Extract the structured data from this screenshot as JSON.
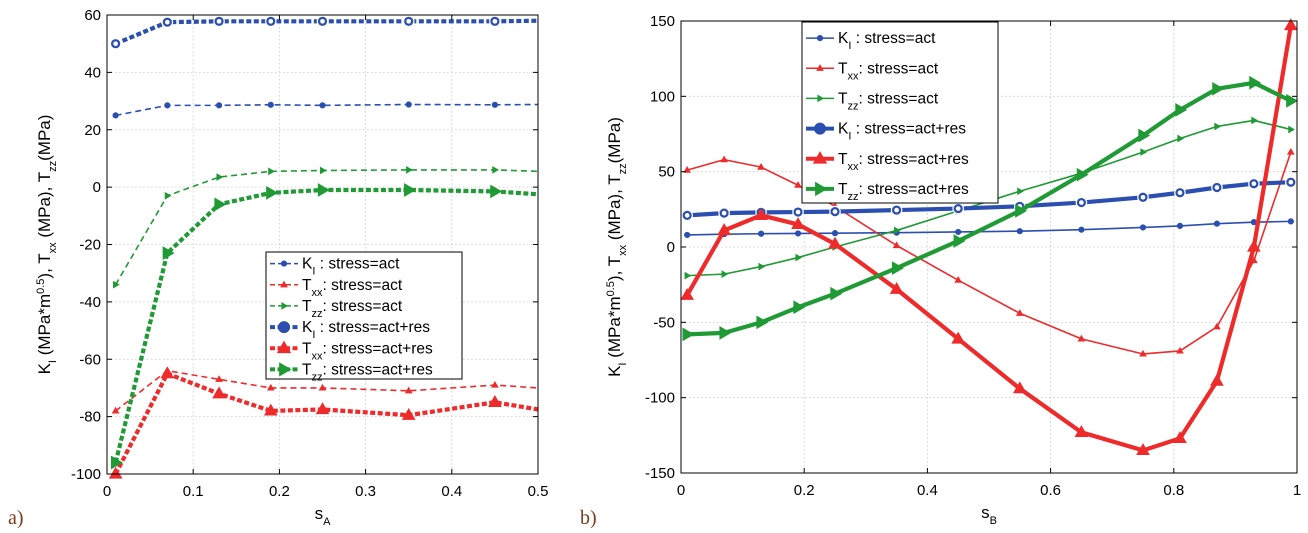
{
  "chart_data": [
    {
      "type": "line",
      "panel_label": "a)",
      "xlabel": {
        "main": "s",
        "sub": "A"
      },
      "ylabel": [
        {
          "t": "K",
          "s": ""
        },
        {
          "t": "I",
          "s": "sub"
        },
        {
          "t": " (MPa*m",
          "s": ""
        },
        {
          "t": "0.5",
          "s": "sup"
        },
        {
          "t": "), T",
          "s": ""
        },
        {
          "t": "xx",
          "s": "sub"
        },
        {
          "t": " (MPa), T",
          "s": ""
        },
        {
          "t": "zz",
          "s": "sub"
        },
        {
          "t": "(MPa)",
          "s": ""
        }
      ],
      "xlim": [
        0,
        0.5
      ],
      "ylim": [
        -100,
        60
      ],
      "xticks": [
        0,
        0.1,
        0.2,
        0.3,
        0.4,
        0.5
      ],
      "xtick_labels": [
        "0",
        "0.1",
        "0.2",
        "0.3",
        "0.4",
        "0.5"
      ],
      "yticks": [
        -100,
        -80,
        -60,
        -40,
        -20,
        0,
        20,
        40,
        60
      ],
      "ytick_labels": [
        "-100",
        "-80",
        "-60",
        "-40",
        "-20",
        "0",
        "20",
        "40",
        "60"
      ],
      "grid": true,
      "legend_position": "center-right",
      "series": [
        {
          "sym": "K",
          "sub": "I",
          "text": "  : stress=act",
          "color": "#2b4fb0",
          "style": "dashed",
          "thick": false,
          "marker": "circle",
          "x": [
            0.01,
            0.07,
            0.13,
            0.19,
            0.25,
            0.35,
            0.45,
            0.5
          ],
          "y": [
            25,
            28.5,
            28.5,
            28.7,
            28.5,
            28.8,
            28.7,
            28.8
          ]
        },
        {
          "sym": "T",
          "sub": "xx",
          "text": ": stress=act",
          "color": "#ee2a2a",
          "style": "dashed",
          "thick": false,
          "marker": "triangle-up",
          "x": [
            0.01,
            0.07,
            0.13,
            0.19,
            0.25,
            0.35,
            0.45,
            0.5
          ],
          "y": [
            -78,
            -64,
            -67,
            -70,
            -70,
            -71,
            -69,
            -70
          ]
        },
        {
          "sym": "T",
          "sub": "zz",
          "text": ": stress=act",
          "color": "#1f9a34",
          "style": "dashed",
          "thick": false,
          "marker": "triangle-right",
          "x": [
            0.01,
            0.07,
            0.13,
            0.19,
            0.25,
            0.35,
            0.45,
            0.5
          ],
          "y": [
            -34,
            -3,
            3.5,
            5.5,
            5.8,
            6,
            6,
            5.5
          ]
        },
        {
          "sym": "K",
          "sub": "I",
          "text": "  : stress=act+res",
          "color": "#2b4fb0",
          "style": "dashed",
          "thick": true,
          "marker": "circle",
          "x": [
            0.01,
            0.07,
            0.13,
            0.19,
            0.25,
            0.35,
            0.45,
            0.5
          ],
          "y": [
            50,
            57.5,
            57.8,
            57.8,
            57.8,
            57.8,
            57.8,
            58
          ]
        },
        {
          "sym": "T",
          "sub": "xx",
          "text": ": stress=act+res",
          "color": "#ee2a2a",
          "style": "dashed",
          "thick": true,
          "marker": "triangle-up",
          "x": [
            0.01,
            0.07,
            0.13,
            0.19,
            0.25,
            0.35,
            0.45,
            0.5
          ],
          "y": [
            -100,
            -65,
            -72,
            -78,
            -77.5,
            -79.5,
            -75,
            -77.5
          ]
        },
        {
          "sym": "T",
          "sub": "zz",
          "text": ": stress=act+res",
          "color": "#1f9a34",
          "style": "dashed",
          "thick": true,
          "marker": "triangle-right",
          "x": [
            0.01,
            0.07,
            0.13,
            0.19,
            0.25,
            0.35,
            0.45,
            0.5
          ],
          "y": [
            -96,
            -23,
            -6,
            -2,
            -1,
            -1,
            -1.5,
            -2.5
          ]
        }
      ]
    },
    {
      "type": "line",
      "panel_label": "b)",
      "xlabel": {
        "main": "s",
        "sub": "B"
      },
      "ylabel": [
        {
          "t": "K",
          "s": ""
        },
        {
          "t": "I",
          "s": "sub"
        },
        {
          "t": " (MPa*m",
          "s": ""
        },
        {
          "t": "0.5",
          "s": "sup"
        },
        {
          "t": "), T",
          "s": ""
        },
        {
          "t": "xx",
          "s": "sub"
        },
        {
          "t": " (MPa), T",
          "s": ""
        },
        {
          "t": "zz",
          "s": "sub"
        },
        {
          "t": "(MPa)",
          "s": ""
        }
      ],
      "xlim": [
        0,
        1
      ],
      "ylim": [
        -150,
        150
      ],
      "xticks": [
        0,
        0.2,
        0.4,
        0.6,
        0.8,
        1
      ],
      "xtick_labels": [
        "0",
        "0.2",
        "0.4",
        "0.6",
        "0.8",
        "1"
      ],
      "yticks": [
        -150,
        -100,
        -50,
        0,
        50,
        100,
        150
      ],
      "ytick_labels": [
        "-150",
        "-100",
        "-50",
        "0",
        "50",
        "100",
        "150"
      ],
      "grid": true,
      "legend_position": "top-left",
      "series": [
        {
          "sym": "K",
          "sub": "I",
          "text": "  : stress=act",
          "color": "#2b4fb0",
          "style": "solid",
          "thick": false,
          "marker": "circle",
          "x": [
            0.01,
            0.07,
            0.13,
            0.19,
            0.25,
            0.35,
            0.45,
            0.55,
            0.65,
            0.75,
            0.81,
            0.87,
            0.93,
            0.99
          ],
          "y": [
            8,
            8.5,
            8.8,
            9,
            9.2,
            9.5,
            10,
            10.5,
            11.5,
            13,
            14,
            15.5,
            16.5,
            17
          ]
        },
        {
          "sym": "T",
          "sub": "xx",
          "text": ": stress=act",
          "color": "#ee2a2a",
          "style": "solid",
          "thick": false,
          "marker": "triangle-up",
          "x": [
            0.01,
            0.07,
            0.13,
            0.19,
            0.25,
            0.35,
            0.45,
            0.55,
            0.65,
            0.75,
            0.81,
            0.87,
            0.93,
            0.99
          ],
          "y": [
            51,
            58,
            53,
            41,
            27,
            1,
            -22,
            -44,
            -61,
            -71,
            -69,
            -53,
            -9,
            63
          ]
        },
        {
          "sym": "T",
          "sub": "zz",
          "text": ": stress=act",
          "color": "#1f9a34",
          "style": "solid",
          "thick": false,
          "marker": "triangle-right",
          "x": [
            0.01,
            0.07,
            0.13,
            0.19,
            0.25,
            0.35,
            0.45,
            0.55,
            0.65,
            0.75,
            0.81,
            0.87,
            0.93,
            0.99
          ],
          "y": [
            -19,
            -18,
            -13,
            -7,
            0,
            11,
            24,
            37,
            49,
            63,
            72,
            80,
            84,
            78
          ]
        },
        {
          "sym": "K",
          "sub": "I",
          "text": "  : stress=act+res",
          "color": "#2b4fb0",
          "style": "solid",
          "thick": true,
          "marker": "circle",
          "x": [
            0.01,
            0.07,
            0.13,
            0.19,
            0.25,
            0.35,
            0.45,
            0.55,
            0.65,
            0.75,
            0.81,
            0.87,
            0.93,
            0.99
          ],
          "y": [
            21,
            22.5,
            23,
            23.2,
            23.5,
            24.5,
            25.5,
            27,
            29.5,
            33,
            36,
            39.5,
            42,
            43
          ]
        },
        {
          "sym": "T",
          "sub": "xx",
          "text": ": stress=act+res",
          "color": "#ee2a2a",
          "style": "solid",
          "thick": true,
          "marker": "triangle-up",
          "x": [
            0.01,
            0.07,
            0.13,
            0.19,
            0.25,
            0.35,
            0.45,
            0.55,
            0.65,
            0.75,
            0.81,
            0.87,
            0.93,
            0.99
          ],
          "y": [
            -32,
            11,
            21,
            15,
            2,
            -28,
            -61,
            -94,
            -123,
            -135,
            -127,
            -89,
            0,
            147
          ]
        },
        {
          "sym": "T",
          "sub": "zz",
          "text": ": stress=act+res",
          "color": "#1f9a34",
          "style": "solid",
          "thick": true,
          "marker": "triangle-right",
          "x": [
            0.01,
            0.07,
            0.13,
            0.19,
            0.25,
            0.35,
            0.45,
            0.55,
            0.65,
            0.75,
            0.81,
            0.87,
            0.93,
            0.99
          ],
          "y": [
            -58,
            -57,
            -50,
            -40,
            -31,
            -14,
            4,
            24,
            48,
            74,
            91,
            105,
            109,
            97
          ]
        }
      ]
    }
  ]
}
